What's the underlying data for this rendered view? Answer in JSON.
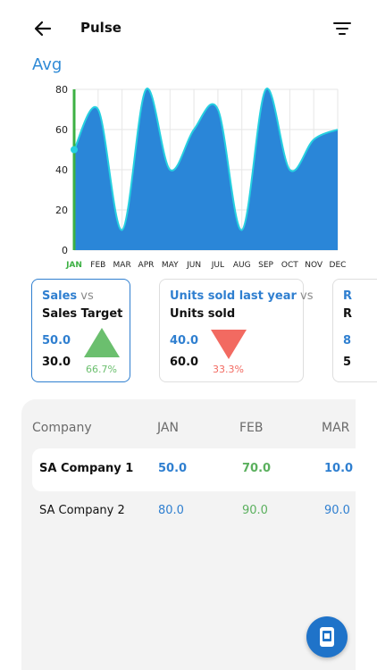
{
  "header": {
    "title": "Pulse",
    "back_icon": "arrow-left-icon",
    "filter_icon": "filter-icon"
  },
  "chart_heading": "Avg",
  "chart_data": {
    "type": "area",
    "categories": [
      "JAN",
      "FEB",
      "MAR",
      "APR",
      "MAY",
      "JUN",
      "JUL",
      "AUG",
      "SEP",
      "OCT",
      "NOV",
      "DEC"
    ],
    "values": [
      50,
      70,
      10,
      80,
      40,
      60,
      70,
      10,
      80,
      40,
      55,
      60
    ],
    "ylim": [
      0,
      80
    ],
    "yticks": [
      "80",
      "60",
      "40",
      "20",
      "0"
    ],
    "selected_category": "JAN",
    "fill_color": "#2a86d8",
    "line_color": "#26d0e0",
    "cursor_color": "#3cb043",
    "grid": true
  },
  "cards": [
    {
      "highlight": "Sales",
      "vs": "vs",
      "second": "Sales Target",
      "value1": "50.0",
      "value2": "30.0",
      "percent": "66.7%",
      "direction": "up"
    },
    {
      "highlight": "Units sold last year",
      "vs": "vs",
      "second": "Units sold",
      "value1": "40.0",
      "value2": "60.0",
      "percent": "33.3%",
      "direction": "down"
    },
    {
      "highlight": "R",
      "vs": "",
      "second": "R",
      "value1": "8",
      "value2": "5",
      "percent": "",
      "direction": ""
    }
  ],
  "table": {
    "headers": [
      "Company",
      "JAN",
      "FEB",
      "MAR"
    ],
    "rows": [
      {
        "company": "SA Company 1",
        "values": [
          "50.0",
          "70.0",
          "10.0"
        ]
      },
      {
        "company": "SA Company 2",
        "values": [
          "80.0",
          "90.0",
          "90.0"
        ]
      }
    ]
  },
  "fab_icon": "mobile-icon",
  "colors": {
    "accent": "#2f7fd0",
    "up": "#6bbf6e",
    "down": "#f26a61"
  }
}
